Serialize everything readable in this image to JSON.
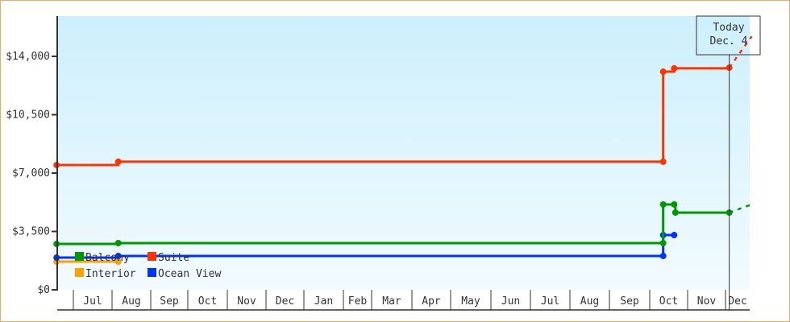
{
  "chart_data": {
    "type": "line",
    "step": true,
    "colors": {
      "Balcony": "#009900",
      "Suite": "#ff3300",
      "Interior": "#ffa000",
      "Ocean View": "#0033ff"
    },
    "y_ticks": [
      "$0",
      "$3,500",
      "$7,000",
      "$10,500",
      "$14,000"
    ],
    "y_tick_values": [
      0,
      3500,
      7000,
      10500,
      14000
    ],
    "ylim": [
      0,
      14000
    ],
    "x_ticks": [
      "Jul",
      "Aug",
      "Sep",
      "Oct",
      "Nov",
      "Dec",
      "Jan",
      "Feb",
      "Mar",
      "Apr",
      "May",
      "Jun",
      "Jul",
      "Aug",
      "Sep",
      "Oct",
      "Nov",
      "Dec"
    ],
    "xlim": [
      "Y1-06-18",
      "Y2-12-22"
    ],
    "grid": false,
    "legend_position": "bottom-left",
    "today": {
      "label": "Today",
      "date_label": "Dec. 4",
      "date": "Y2-12-04"
    },
    "series": [
      {
        "name": "Balcony",
        "points": [
          [
            "Y1-06-18",
            2750
          ],
          [
            "Y1-08-06",
            2800
          ],
          [
            "Y2-10-12",
            2800
          ],
          [
            "Y2-10-12",
            5120
          ],
          [
            "Y2-10-21",
            5120
          ],
          [
            "Y2-10-22",
            4630
          ],
          [
            "Y2-12-04",
            4630
          ]
        ],
        "forecast": [
          [
            "Y2-12-04",
            4630
          ],
          [
            "Y2-12-22",
            5120
          ]
        ]
      },
      {
        "name": "Suite",
        "points": [
          [
            "Y1-06-18",
            7480
          ],
          [
            "Y1-08-06",
            7680
          ],
          [
            "Y2-10-12",
            7680
          ],
          [
            "Y2-10-12",
            13080
          ],
          [
            "Y2-10-21",
            13280
          ],
          [
            "Y2-12-04",
            13320
          ]
        ],
        "forecast": [
          [
            "Y2-12-04",
            13320
          ],
          [
            "Y2-12-22",
            15200
          ]
        ]
      },
      {
        "name": "Interior",
        "points": [
          [
            "Y1-06-18",
            1690
          ],
          [
            "Y1-08-06",
            1690
          ]
        ]
      },
      {
        "name": "Ocean View",
        "points": [
          [
            "Y1-06-18",
            1930
          ],
          [
            "Y1-08-06",
            2030
          ],
          [
            "Y2-10-12",
            2030
          ],
          [
            "Y2-10-12",
            3280
          ],
          [
            "Y2-10-21",
            3280
          ]
        ]
      }
    ],
    "legend": [
      "Balcony",
      "Suite",
      "Interior",
      "Ocean View"
    ]
  }
}
